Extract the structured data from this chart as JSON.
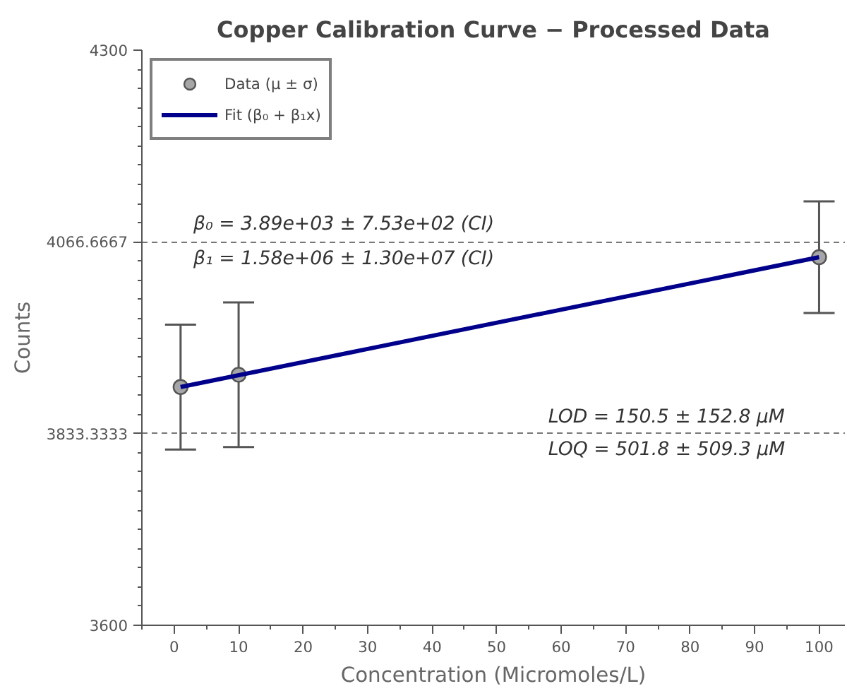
{
  "chart_data": {
    "type": "scatter",
    "title": "Copper Calibration Curve − Processed Data",
    "xlabel": "Concentration (Micromoles/L)",
    "ylabel": "Counts",
    "xlim": [
      -5,
      104
    ],
    "xticks": [
      0,
      10,
      20,
      30,
      40,
      50,
      60,
      70,
      80,
      90,
      100
    ],
    "ylim": [
      3600,
      4300
    ],
    "yticks": [
      3600,
      3833.3333,
      4066.6667,
      4300
    ],
    "grid": "y",
    "legend": "top left",
    "series": [
      {
        "name": "Data (μ ± σ)",
        "marker": "circle",
        "color": "#a6a6a6",
        "x": [
          1,
          10,
          100
        ],
        "values": [
          3890,
          3905,
          4048
        ],
        "errors": [
          76,
          88,
          68
        ]
      },
      {
        "name": "Fit (β₀ + β₁x)",
        "type": "line",
        "color": "#00008b",
        "x": [
          1,
          100
        ],
        "values": [
          3890,
          4048
        ]
      }
    ],
    "annotations": [
      "β₀ = 3.89e+03 ± 7.53e+02 (CI)",
      "β₁ = 1.58e+06 ± 1.30e+07 (CI)",
      "LOD =  150.5 ± 152.8 μM",
      "LOQ = 501.8 ± 509.3  μM"
    ]
  }
}
